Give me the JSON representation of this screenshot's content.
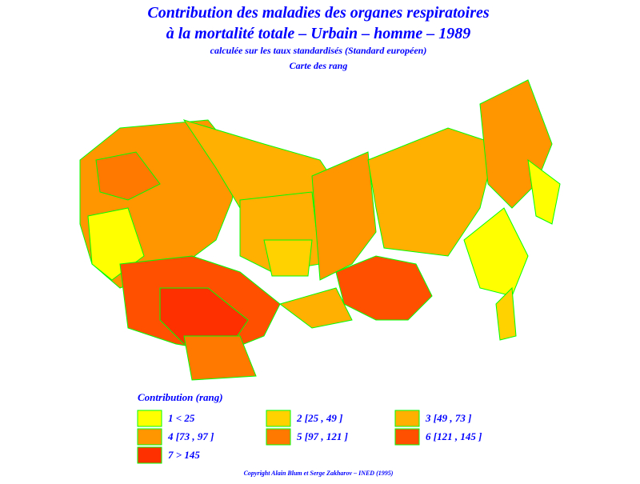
{
  "header": {
    "title_line1": "Contribution des maladies des organes respiratoires",
    "title_line2": "à la mortalité totale – Urbain – homme – 1989",
    "subtitle": "calculée sur les taux standardisés (Standard européen)",
    "map_label": "Carte des rang"
  },
  "legend": {
    "title": "Contribution (rang)",
    "items": [
      {
        "label": "1  <  25",
        "color": "#ffff00"
      },
      {
        "label": "2 [25 , 49 ]",
        "color": "#ffd200"
      },
      {
        "label": "3 [49 , 73 ]",
        "color": "#ffb000"
      },
      {
        "label": "4 [73 , 97 ]",
        "color": "#ff9600"
      },
      {
        "label": "5 [97 , 121 ]",
        "color": "#ff7800"
      },
      {
        "label": "6 [121 , 145 ]",
        "color": "#ff5000"
      },
      {
        "label": "7  >  145",
        "color": "#ff3000"
      }
    ]
  },
  "footer": {
    "copyright": "Copyright Alain Blum et Serge Zakharov – INED (1995)"
  }
}
